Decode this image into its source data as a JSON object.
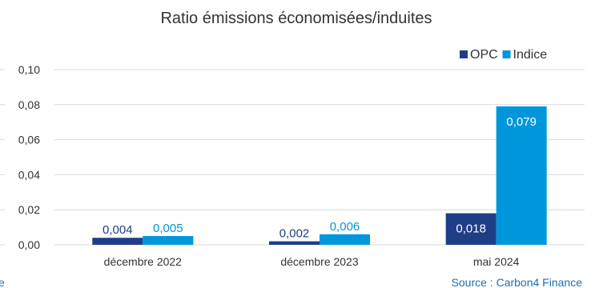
{
  "chart_data": {
    "type": "bar",
    "title": "Ratio émissions économisées/induites",
    "categories": [
      "décembre 2022",
      "décembre 2023",
      "mai 2024"
    ],
    "series": [
      {
        "name": "OPC",
        "values": [
          0.004,
          0.002,
          0.018
        ],
        "labels": [
          "0,004",
          "0,002",
          "0,018"
        ],
        "color": "#1f3e85"
      },
      {
        "name": "Indice",
        "values": [
          0.005,
          0.006,
          0.079
        ],
        "labels": [
          "0,005",
          "0,006",
          "0,079"
        ],
        "color": "#0096dc"
      }
    ],
    "ylim": [
      0,
      0.1
    ],
    "yticks": [
      0.0,
      0.02,
      0.04,
      0.06,
      0.08,
      0.1
    ],
    "ytick_labels": [
      "0,00",
      "0,02",
      "0,04",
      "0,06",
      "0,08",
      "0,10"
    ],
    "xlabel": "",
    "ylabel": "",
    "grid": true,
    "legend_position": "top-right",
    "source": "Source : Carbon4 Finance",
    "left_fragment": "e"
  }
}
